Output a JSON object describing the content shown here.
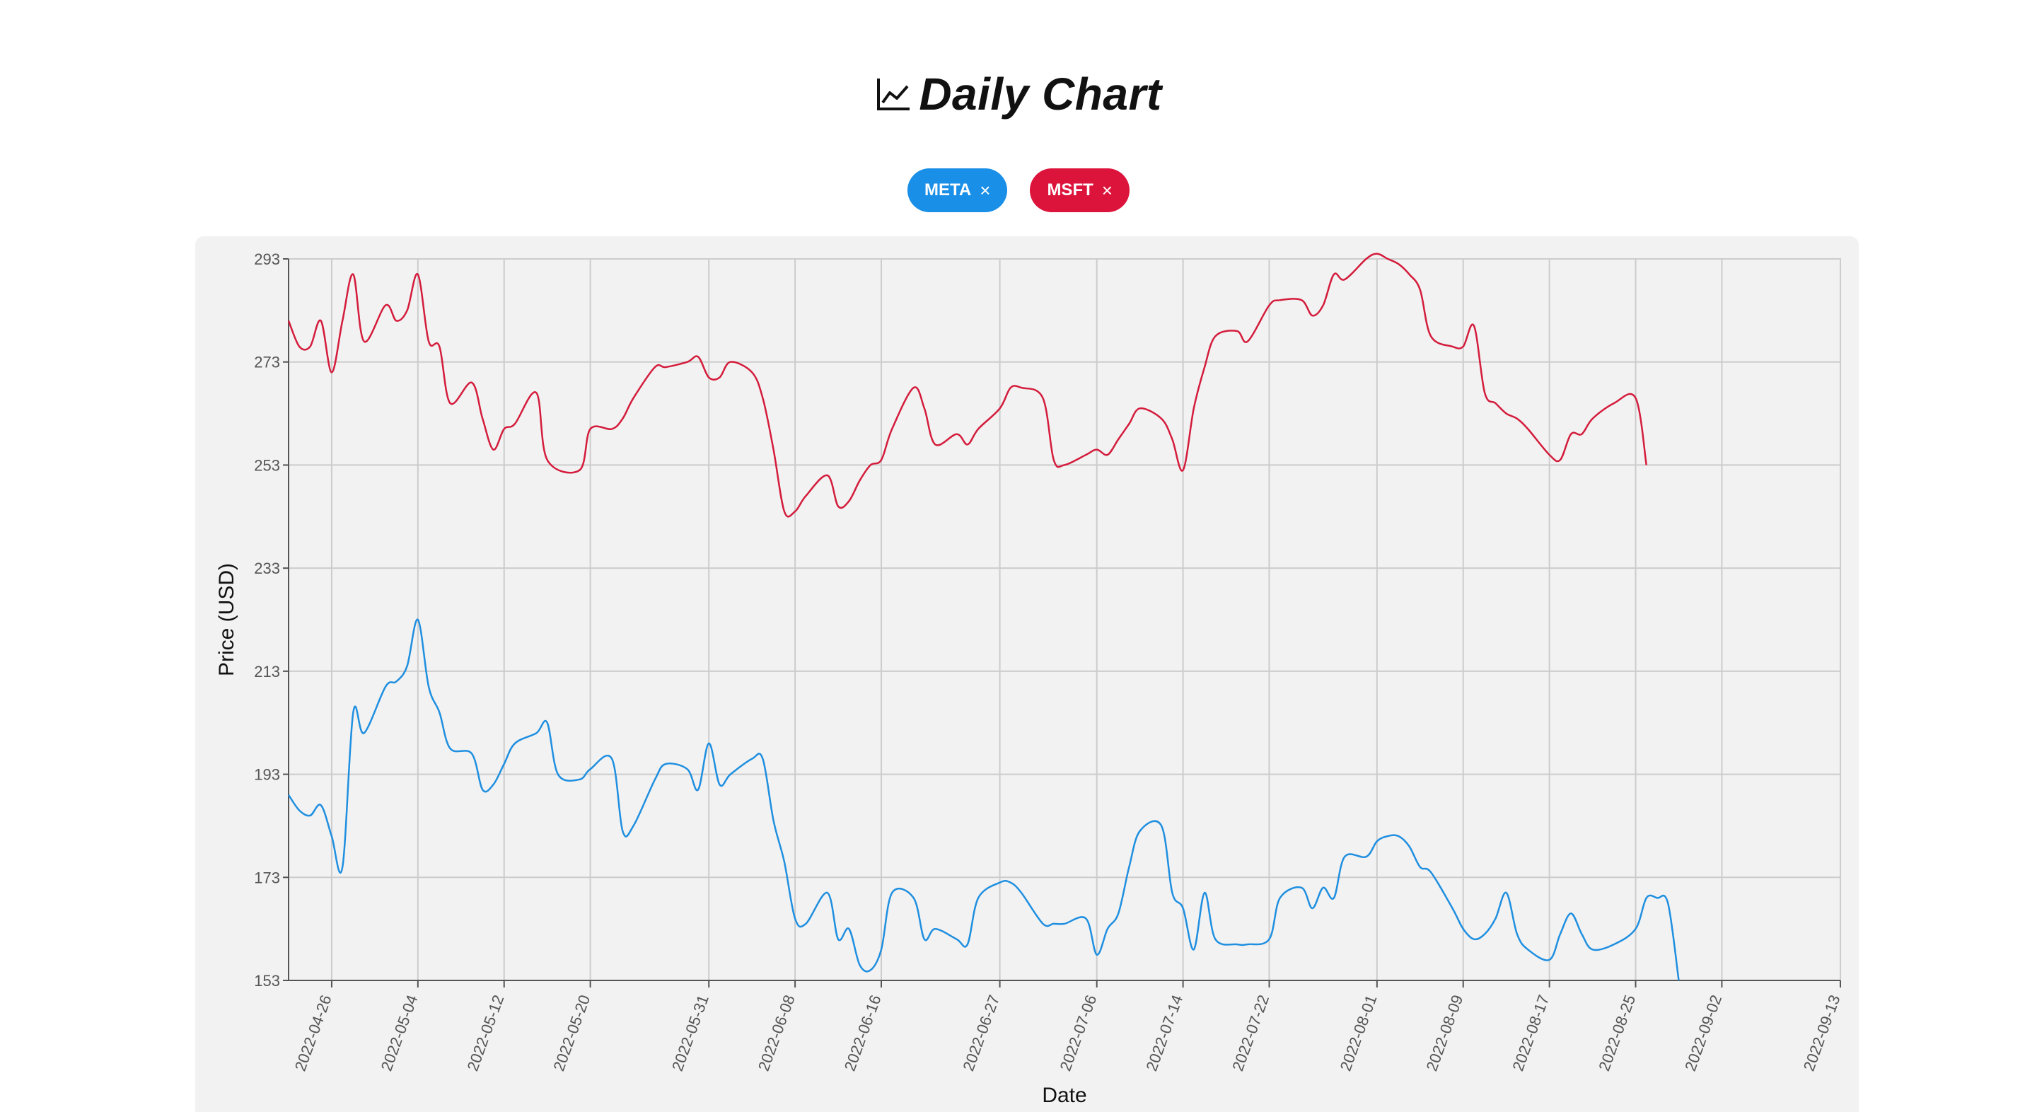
{
  "header": {
    "title": "Daily Chart",
    "icon": "line-chart-icon"
  },
  "chips": [
    {
      "label": "META",
      "close": "×",
      "color": "#1a8fe8"
    },
    {
      "label": "MSFT",
      "close": "×",
      "color": "#dc143c"
    }
  ],
  "chart_data": {
    "type": "line",
    "xlabel": "Date",
    "ylabel": "Price (USD)",
    "ylim": [
      153,
      293
    ],
    "yticks": [
      153,
      173,
      193,
      213,
      233,
      253,
      273,
      293
    ],
    "xlim": [
      "2022-04-22",
      "2022-09-13"
    ],
    "xticks": [
      "2022-04-26",
      "2022-05-04",
      "2022-05-12",
      "2022-05-20",
      "2022-05-31",
      "2022-06-08",
      "2022-06-16",
      "2022-06-27",
      "2022-07-06",
      "2022-07-14",
      "2022-07-22",
      "2022-08-01",
      "2022-08-09",
      "2022-08-17",
      "2022-08-25",
      "2022-09-02",
      "2022-09-13"
    ],
    "grid": true,
    "series": [
      {
        "name": "META",
        "color": "#1f8fe0",
        "points": [
          [
            "2022-04-22",
            189
          ],
          [
            "2022-04-23",
            186
          ],
          [
            "2022-04-24",
            185
          ],
          [
            "2022-04-25",
            187
          ],
          [
            "2022-04-26",
            181
          ],
          [
            "2022-04-27",
            175
          ],
          [
            "2022-04-28",
            205
          ],
          [
            "2022-04-29",
            201
          ],
          [
            "2022-05-01",
            210
          ],
          [
            "2022-05-02",
            211
          ],
          [
            "2022-05-03",
            214
          ],
          [
            "2022-05-04",
            223
          ],
          [
            "2022-05-05",
            210
          ],
          [
            "2022-05-06",
            205
          ],
          [
            "2022-05-07",
            198
          ],
          [
            "2022-05-09",
            197
          ],
          [
            "2022-05-10",
            190
          ],
          [
            "2022-05-11",
            191
          ],
          [
            "2022-05-12",
            195
          ],
          [
            "2022-05-13",
            199
          ],
          [
            "2022-05-15",
            201
          ],
          [
            "2022-05-16",
            203
          ],
          [
            "2022-05-17",
            193
          ],
          [
            "2022-05-19",
            192
          ],
          [
            "2022-05-20",
            194
          ],
          [
            "2022-05-22",
            196
          ],
          [
            "2022-05-23",
            182
          ],
          [
            "2022-05-24",
            183
          ],
          [
            "2022-05-26",
            192
          ],
          [
            "2022-05-27",
            195
          ],
          [
            "2022-05-29",
            194
          ],
          [
            "2022-05-30",
            190
          ],
          [
            "2022-05-31",
            199
          ],
          [
            "2022-06-01",
            191
          ],
          [
            "2022-06-02",
            193
          ],
          [
            "2022-06-04",
            196
          ],
          [
            "2022-06-05",
            196
          ],
          [
            "2022-06-06",
            184
          ],
          [
            "2022-06-07",
            176
          ],
          [
            "2022-06-08",
            165
          ],
          [
            "2022-06-09",
            164
          ],
          [
            "2022-06-11",
            170
          ],
          [
            "2022-06-12",
            161
          ],
          [
            "2022-06-13",
            163
          ],
          [
            "2022-06-14",
            156
          ],
          [
            "2022-06-15",
            155
          ],
          [
            "2022-06-16",
            159
          ],
          [
            "2022-06-17",
            170
          ],
          [
            "2022-06-19",
            169
          ],
          [
            "2022-06-20",
            161
          ],
          [
            "2022-06-21",
            163
          ],
          [
            "2022-06-23",
            161
          ],
          [
            "2022-06-24",
            160
          ],
          [
            "2022-06-25",
            169
          ],
          [
            "2022-06-27",
            172
          ],
          [
            "2022-06-28",
            172
          ],
          [
            "2022-06-29",
            170
          ],
          [
            "2022-07-01",
            164
          ],
          [
            "2022-07-02",
            164
          ],
          [
            "2022-07-03",
            164
          ],
          [
            "2022-07-05",
            165
          ],
          [
            "2022-07-06",
            158
          ],
          [
            "2022-07-07",
            163
          ],
          [
            "2022-07-08",
            166
          ],
          [
            "2022-07-09",
            175
          ],
          [
            "2022-07-10",
            182
          ],
          [
            "2022-07-12",
            183
          ],
          [
            "2022-07-13",
            170
          ],
          [
            "2022-07-14",
            167
          ],
          [
            "2022-07-15",
            159
          ],
          [
            "2022-07-16",
            170
          ],
          [
            "2022-07-17",
            161
          ],
          [
            "2022-07-19",
            160
          ],
          [
            "2022-07-20",
            160
          ],
          [
            "2022-07-22",
            161
          ],
          [
            "2022-07-23",
            169
          ],
          [
            "2022-07-25",
            171
          ],
          [
            "2022-07-26",
            167
          ],
          [
            "2022-07-27",
            171
          ],
          [
            "2022-07-28",
            169
          ],
          [
            "2022-07-29",
            177
          ],
          [
            "2022-07-31",
            177
          ],
          [
            "2022-08-01",
            180
          ],
          [
            "2022-08-02",
            181
          ],
          [
            "2022-08-03",
            181
          ],
          [
            "2022-08-04",
            179
          ],
          [
            "2022-08-05",
            175
          ],
          [
            "2022-08-06",
            174
          ],
          [
            "2022-08-08",
            167
          ],
          [
            "2022-08-09",
            163
          ],
          [
            "2022-08-10",
            161
          ],
          [
            "2022-08-11",
            162
          ],
          [
            "2022-08-12",
            165
          ],
          [
            "2022-08-13",
            170
          ],
          [
            "2022-08-14",
            162
          ],
          [
            "2022-08-15",
            159
          ],
          [
            "2022-08-17",
            157
          ],
          [
            "2022-08-18",
            162
          ],
          [
            "2022-08-19",
            166
          ],
          [
            "2022-08-20",
            162
          ],
          [
            "2022-08-21",
            159
          ],
          [
            "2022-08-23",
            160
          ],
          [
            "2022-08-25",
            163
          ],
          [
            "2022-08-26",
            169
          ],
          [
            "2022-08-27",
            169
          ],
          [
            "2022-08-28",
            168
          ],
          [
            "2022-08-29",
            153
          ]
        ]
      },
      {
        "name": "MSFT",
        "color": "#d41c3c",
        "points": [
          [
            "2022-04-22",
            281
          ],
          [
            "2022-04-23",
            276
          ],
          [
            "2022-04-24",
            276
          ],
          [
            "2022-04-25",
            281
          ],
          [
            "2022-04-26",
            271
          ],
          [
            "2022-04-27",
            281
          ],
          [
            "2022-04-28",
            290
          ],
          [
            "2022-04-29",
            277
          ],
          [
            "2022-05-01",
            284
          ],
          [
            "2022-05-02",
            281
          ],
          [
            "2022-05-03",
            283
          ],
          [
            "2022-05-04",
            290
          ],
          [
            "2022-05-05",
            277
          ],
          [
            "2022-05-06",
            276
          ],
          [
            "2022-05-07",
            265
          ],
          [
            "2022-05-09",
            269
          ],
          [
            "2022-05-10",
            262
          ],
          [
            "2022-05-11",
            256
          ],
          [
            "2022-05-12",
            260
          ],
          [
            "2022-05-13",
            261
          ],
          [
            "2022-05-15",
            267
          ],
          [
            "2022-05-16",
            254
          ],
          [
            "2022-05-19",
            252
          ],
          [
            "2022-05-20",
            260
          ],
          [
            "2022-05-22",
            260
          ],
          [
            "2022-05-23",
            262
          ],
          [
            "2022-05-24",
            266
          ],
          [
            "2022-05-26",
            272
          ],
          [
            "2022-05-27",
            272
          ],
          [
            "2022-05-29",
            273
          ],
          [
            "2022-05-30",
            274
          ],
          [
            "2022-05-31",
            270
          ],
          [
            "2022-06-01",
            270
          ],
          [
            "2022-06-02",
            273
          ],
          [
            "2022-06-04",
            271
          ],
          [
            "2022-06-05",
            266
          ],
          [
            "2022-06-06",
            256
          ],
          [
            "2022-06-07",
            244
          ],
          [
            "2022-06-08",
            244
          ],
          [
            "2022-06-09",
            247
          ],
          [
            "2022-06-11",
            251
          ],
          [
            "2022-06-12",
            245
          ],
          [
            "2022-06-13",
            246
          ],
          [
            "2022-06-14",
            250
          ],
          [
            "2022-06-15",
            253
          ],
          [
            "2022-06-16",
            254
          ],
          [
            "2022-06-17",
            260
          ],
          [
            "2022-06-19",
            268
          ],
          [
            "2022-06-20",
            264
          ],
          [
            "2022-06-21",
            257
          ],
          [
            "2022-06-23",
            259
          ],
          [
            "2022-06-24",
            257
          ],
          [
            "2022-06-25",
            260
          ],
          [
            "2022-06-27",
            264
          ],
          [
            "2022-06-28",
            268
          ],
          [
            "2022-06-29",
            268
          ],
          [
            "2022-07-01",
            266
          ],
          [
            "2022-07-02",
            254
          ],
          [
            "2022-07-03",
            253
          ],
          [
            "2022-07-05",
            255
          ],
          [
            "2022-07-06",
            256
          ],
          [
            "2022-07-07",
            255
          ],
          [
            "2022-07-08",
            258
          ],
          [
            "2022-07-09",
            261
          ],
          [
            "2022-07-10",
            264
          ],
          [
            "2022-07-12",
            262
          ],
          [
            "2022-07-13",
            258
          ],
          [
            "2022-07-14",
            252
          ],
          [
            "2022-07-15",
            264
          ],
          [
            "2022-07-16",
            272
          ],
          [
            "2022-07-17",
            278
          ],
          [
            "2022-07-19",
            279
          ],
          [
            "2022-07-20",
            277
          ],
          [
            "2022-07-22",
            284
          ],
          [
            "2022-07-23",
            285
          ],
          [
            "2022-07-25",
            285
          ],
          [
            "2022-07-26",
            282
          ],
          [
            "2022-07-27",
            284
          ],
          [
            "2022-07-28",
            290
          ],
          [
            "2022-07-29",
            289
          ],
          [
            "2022-07-31",
            293
          ],
          [
            "2022-08-01",
            294
          ],
          [
            "2022-08-02",
            293
          ],
          [
            "2022-08-03",
            292
          ],
          [
            "2022-08-04",
            290
          ],
          [
            "2022-08-05",
            287
          ],
          [
            "2022-08-06",
            278
          ],
          [
            "2022-08-08",
            276
          ],
          [
            "2022-08-09",
            276
          ],
          [
            "2022-08-10",
            280
          ],
          [
            "2022-08-11",
            267
          ],
          [
            "2022-08-12",
            265
          ],
          [
            "2022-08-13",
            263
          ],
          [
            "2022-08-14",
            262
          ],
          [
            "2022-08-15",
            260
          ],
          [
            "2022-08-17",
            255
          ],
          [
            "2022-08-18",
            254
          ],
          [
            "2022-08-19",
            259
          ],
          [
            "2022-08-20",
            259
          ],
          [
            "2022-08-21",
            262
          ],
          [
            "2022-08-23",
            265
          ],
          [
            "2022-08-25",
            266
          ],
          [
            "2022-08-26",
            253
          ]
        ]
      }
    ]
  }
}
